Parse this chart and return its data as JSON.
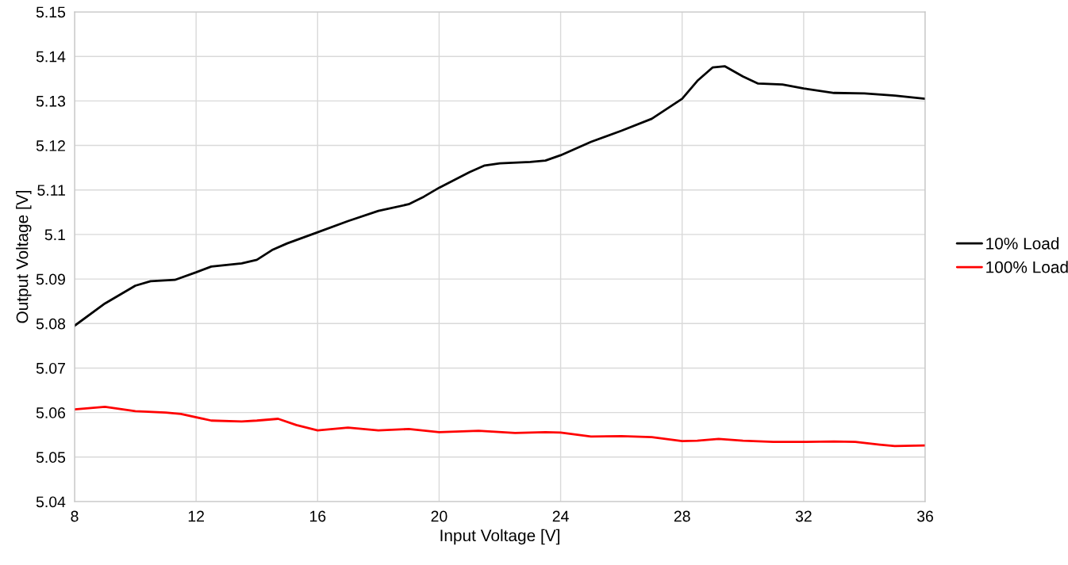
{
  "chart_data": {
    "type": "line",
    "xlabel": "Input Voltage [V]",
    "ylabel": "Output Voltage [V]",
    "xlim": [
      8,
      36
    ],
    "xticks": [
      8,
      12,
      16,
      20,
      24,
      28,
      32,
      36
    ],
    "ylim": [
      5.04,
      5.15
    ],
    "yticks": [
      5.04,
      5.05,
      5.06,
      5.07,
      5.08,
      5.09,
      5.1,
      5.11,
      5.12,
      5.13,
      5.14,
      5.15
    ],
    "grid": true,
    "legend": "right",
    "marker": "none",
    "line_style": "solid",
    "series": [
      {
        "name": "10% Load",
        "color": "#000000",
        "x": [
          8,
          9,
          10,
          10.5,
          11.3,
          12,
          12.5,
          13.5,
          14,
          14.5,
          15,
          16,
          17,
          18,
          19,
          19.5,
          20,
          21,
          21.5,
          22,
          23,
          23.5,
          24,
          25,
          26,
          27,
          28,
          28.5,
          29,
          29.4,
          30,
          30.5,
          31.3,
          32,
          33,
          34,
          35,
          36
        ],
        "values": [
          5.0795,
          5.0845,
          5.0885,
          5.0895,
          5.0898,
          5.0915,
          5.0928,
          5.0935,
          5.0943,
          5.0965,
          5.098,
          5.1005,
          5.103,
          5.1053,
          5.1068,
          5.1085,
          5.1105,
          5.114,
          5.1155,
          5.116,
          5.1163,
          5.1166,
          5.1178,
          5.1208,
          5.1233,
          5.126,
          5.1305,
          5.1345,
          5.1375,
          5.1378,
          5.1355,
          5.1339,
          5.1337,
          5.1328,
          5.1318,
          5.1317,
          5.1312,
          5.1305
        ]
      },
      {
        "name": "100% Load",
        "color": "#ff0000",
        "x": [
          8,
          9,
          10,
          11,
          11.5,
          12.5,
          13.5,
          14,
          14.7,
          15.3,
          16,
          17,
          18,
          19,
          20,
          21.3,
          22.5,
          23.5,
          24,
          25,
          26,
          27,
          28,
          28.5,
          29.2,
          30,
          31,
          32,
          33,
          33.7,
          34.5,
          35,
          36
        ],
        "values": [
          5.0607,
          5.0613,
          5.0603,
          5.06,
          5.0597,
          5.0582,
          5.058,
          5.0582,
          5.0586,
          5.0572,
          5.056,
          5.0566,
          5.056,
          5.0563,
          5.0556,
          5.0559,
          5.0554,
          5.0556,
          5.0555,
          5.0546,
          5.0547,
          5.0545,
          5.0536,
          5.0537,
          5.0541,
          5.0537,
          5.0534,
          5.0534,
          5.0535,
          5.0534,
          5.0528,
          5.0525,
          5.0526
        ]
      }
    ]
  }
}
